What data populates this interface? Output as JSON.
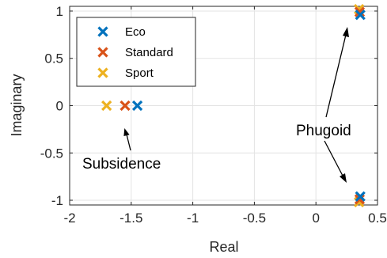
{
  "chart_data": {
    "type": "scatter",
    "title": "",
    "xlabel": "Real",
    "ylabel": "Imaginary",
    "xlim": [
      -2,
      0.5
    ],
    "ylim": [
      -1.05,
      1.05
    ],
    "xticks": [
      -2,
      -1.5,
      -1,
      -0.5,
      0,
      0.5
    ],
    "xtick_labels": [
      "-2",
      "-1.5",
      "-1",
      "-0.5",
      "0",
      "0.5"
    ],
    "yticks": [
      -1,
      -0.5,
      0,
      0.5,
      1
    ],
    "ytick_labels": [
      "-1",
      "-0.5",
      "0",
      "0.5",
      "1"
    ],
    "grid": true,
    "legend_position": "top-left",
    "marker": "x",
    "series": [
      {
        "name": "Eco",
        "color": "#0072BD",
        "points": [
          [
            -1.45,
            0
          ],
          [
            0.36,
            0.96
          ],
          [
            0.36,
            -0.96
          ]
        ]
      },
      {
        "name": "Standard",
        "color": "#D95319",
        "points": [
          [
            -1.55,
            0
          ],
          [
            0.355,
            0.99
          ],
          [
            0.355,
            -0.99
          ]
        ]
      },
      {
        "name": "Sport",
        "color": "#EDB120",
        "points": [
          [
            -1.7,
            0
          ],
          [
            0.35,
            1.02
          ],
          [
            0.35,
            -1.02
          ]
        ]
      }
    ],
    "annotations": [
      {
        "text": "Subsidence",
        "arrow_to": [
          -1.53,
          -0.05
        ]
      },
      {
        "text": "Phugoid",
        "arrows_to": [
          [
            0.34,
            0.9
          ],
          [
            0.34,
            -0.88
          ]
        ]
      }
    ]
  }
}
